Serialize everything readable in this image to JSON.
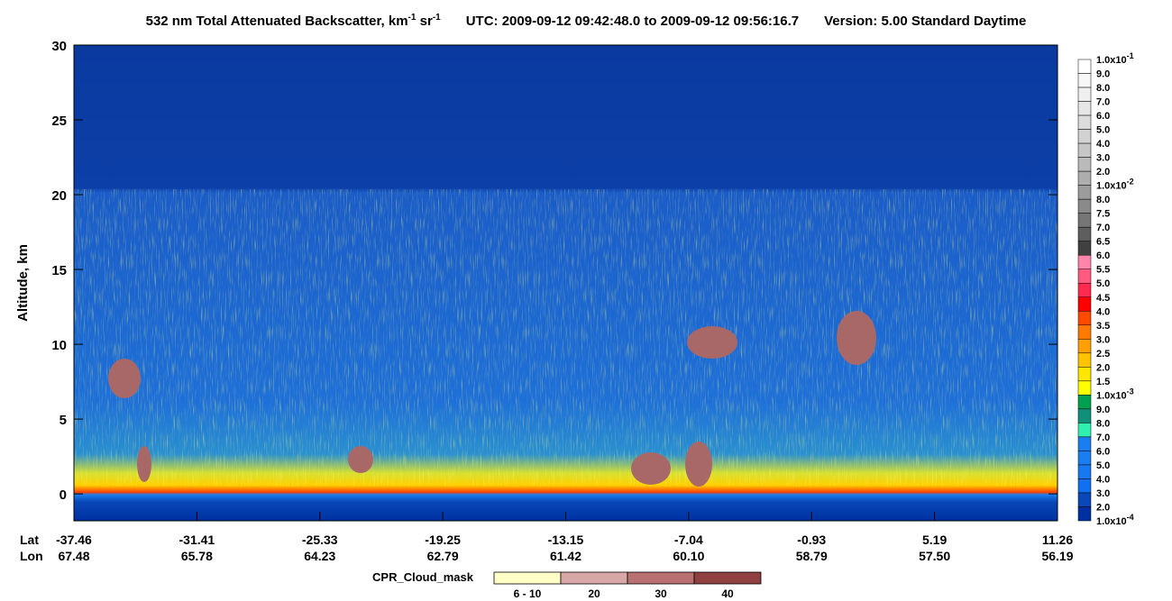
{
  "chart_data": {
    "type": "heatmap",
    "title_parts": [
      "532 nm Total Attenuated Backscatter, km",
      "-1",
      " sr",
      "-1",
      "UTC:  2009-09-12 09:42:48.0  to  2009-09-12 09:56:16.7",
      "Version: 5.00  Standard  Daytime"
    ],
    "ylabel": "Altitude, km",
    "ylim": [
      -1.8,
      30
    ],
    "yticks": [
      0,
      5,
      10,
      15,
      20,
      25,
      30
    ],
    "x_row_labels": [
      "Lat",
      "Lon"
    ],
    "lat": [
      -37.46,
      -31.41,
      -25.33,
      -19.25,
      -13.15,
      -7.04,
      -0.93,
      5.19,
      11.26
    ],
    "lon": [
      67.48,
      65.78,
      64.23,
      62.79,
      61.42,
      60.1,
      58.79,
      57.5,
      56.19
    ],
    "lon_labels": [
      "67.48",
      "65.78",
      "64.23",
      "62.79",
      "61.42",
      "60.10",
      "58.79",
      "57.50",
      "56.19"
    ],
    "colorbar": {
      "labels": [
        {
          "text": "1.0x10",
          "exp": "-1"
        },
        {
          "text": "9.0"
        },
        {
          "text": "8.0"
        },
        {
          "text": "7.0"
        },
        {
          "text": "6.0"
        },
        {
          "text": "5.0"
        },
        {
          "text": "4.0"
        },
        {
          "text": "3.0"
        },
        {
          "text": "2.0"
        },
        {
          "text": "1.0x10",
          "exp": "-2"
        },
        {
          "text": "8.0"
        },
        {
          "text": "7.5"
        },
        {
          "text": "7.0"
        },
        {
          "text": "6.5"
        },
        {
          "text": "6.0"
        },
        {
          "text": "5.5"
        },
        {
          "text": "5.0"
        },
        {
          "text": "4.5"
        },
        {
          "text": "4.0"
        },
        {
          "text": "3.5"
        },
        {
          "text": "3.0"
        },
        {
          "text": "2.5"
        },
        {
          "text": "2.0"
        },
        {
          "text": "1.5"
        },
        {
          "text": "1.0x10",
          "exp": "-3"
        },
        {
          "text": "9.0"
        },
        {
          "text": "8.0"
        },
        {
          "text": "7.0"
        },
        {
          "text": "6.0"
        },
        {
          "text": "5.0"
        },
        {
          "text": "4.0"
        },
        {
          "text": "3.0"
        },
        {
          "text": "2.0"
        },
        {
          "text": "1.0x10",
          "exp": "-4"
        }
      ],
      "colors": [
        "#ffffff",
        "#f7f7f7",
        "#efefef",
        "#e6e6e6",
        "#dcdcdc",
        "#d2d2d2",
        "#c6c6c6",
        "#bababa",
        "#adadad",
        "#9c9c9c",
        "#8a8a8a",
        "#767676",
        "#5e5e5e",
        "#404040",
        "#ff85aa",
        "#ff5a80",
        "#ff2a50",
        "#ff0000",
        "#ff4a00",
        "#ff7a00",
        "#ffa000",
        "#ffc400",
        "#ffe600",
        "#ffff00",
        "#00a050",
        "#10907a",
        "#30f0b0",
        "#1a7ef0",
        "#1a7ef0",
        "#1878f0",
        "#1070f0",
        "#0848b8",
        "#0030a0"
      ]
    },
    "cloud_mask": {
      "title": "CPR_Cloud_mask",
      "categories": [
        "6 - 10",
        "20",
        "30",
        "40"
      ],
      "colors": [
        "#ffffc8",
        "#d8a8a8",
        "#b87070",
        "#904040"
      ]
    }
  }
}
